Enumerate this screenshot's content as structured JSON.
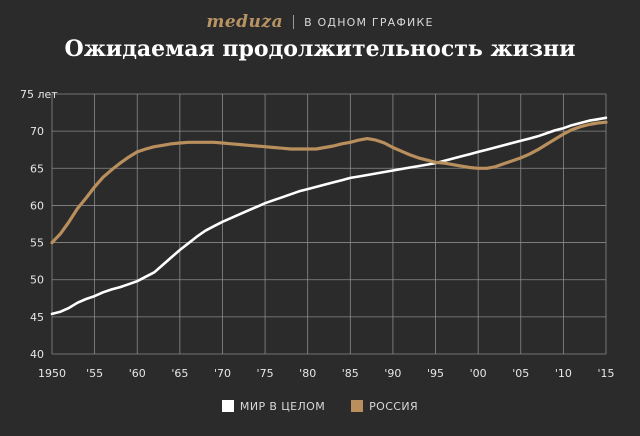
{
  "header": {
    "brand": "meduza",
    "tagline": "В ОДНОМ ГРАФИКЕ"
  },
  "colors": {
    "background": "#2b2b2b",
    "world": "#ffffff",
    "russia": "#b88f5d",
    "brand": "#b89463",
    "grid": "#8a8a8a"
  },
  "chart_data": {
    "type": "line",
    "title": "Ожидаемая продолжительность жизни",
    "xlabel": "",
    "ylabel": "",
    "xlim": [
      1950,
      2015
    ],
    "ylim": [
      40,
      75
    ],
    "x_ticks": [
      1950,
      1955,
      1960,
      1965,
      1970,
      1975,
      1980,
      1985,
      1990,
      1995,
      2000,
      2005,
      2010,
      2015
    ],
    "x_tick_labels": [
      "1950",
      "'55",
      "'60",
      "'65",
      "'70",
      "'75",
      "'80",
      "'85",
      "'90",
      "'95",
      "'00",
      "'05",
      "'10",
      "'15"
    ],
    "y_ticks": [
      40,
      45,
      50,
      55,
      60,
      65,
      70,
      75
    ],
    "y_tick_labels": [
      "40",
      "45",
      "50",
      "55",
      "60",
      "65",
      "70",
      "75 лет"
    ],
    "grid": true,
    "legend": "bottom",
    "series": [
      {
        "name": "МИР В ЦЕЛОМ",
        "color": "#ffffff",
        "x": [
          1950,
          1951,
          1952,
          1953,
          1954,
          1955,
          1956,
          1957,
          1958,
          1959,
          1960,
          1961,
          1962,
          1963,
          1964,
          1965,
          1966,
          1967,
          1968,
          1969,
          1970,
          1971,
          1972,
          1973,
          1974,
          1975,
          1976,
          1977,
          1978,
          1979,
          1980,
          1981,
          1982,
          1983,
          1984,
          1985,
          1986,
          1987,
          1988,
          1989,
          1990,
          1991,
          1992,
          1993,
          1994,
          1995,
          1996,
          1997,
          1998,
          1999,
          2000,
          2001,
          2002,
          2003,
          2004,
          2005,
          2006,
          2007,
          2008,
          2009,
          2010,
          2011,
          2012,
          2013,
          2014,
          2015
        ],
        "values": [
          45.4,
          45.7,
          46.2,
          46.9,
          47.4,
          47.8,
          48.3,
          48.7,
          49.0,
          49.4,
          49.8,
          50.4,
          51.0,
          52.0,
          53.0,
          54.0,
          54.9,
          55.8,
          56.6,
          57.2,
          57.8,
          58.3,
          58.8,
          59.3,
          59.8,
          60.3,
          60.7,
          61.1,
          61.5,
          61.9,
          62.2,
          62.5,
          62.8,
          63.1,
          63.4,
          63.7,
          63.9,
          64.1,
          64.3,
          64.5,
          64.7,
          64.9,
          65.1,
          65.3,
          65.5,
          65.7,
          66.0,
          66.3,
          66.6,
          66.9,
          67.2,
          67.5,
          67.8,
          68.1,
          68.4,
          68.7,
          69.0,
          69.3,
          69.7,
          70.1,
          70.4,
          70.8,
          71.1,
          71.4,
          71.6,
          71.8
        ]
      },
      {
        "name": "РОССИЯ",
        "color": "#b88f5d",
        "x": [
          1950,
          1951,
          1952,
          1953,
          1954,
          1955,
          1956,
          1957,
          1958,
          1959,
          1960,
          1961,
          1962,
          1963,
          1964,
          1965,
          1966,
          1967,
          1968,
          1969,
          1970,
          1971,
          1972,
          1973,
          1974,
          1975,
          1976,
          1977,
          1978,
          1979,
          1980,
          1981,
          1982,
          1983,
          1984,
          1985,
          1986,
          1987,
          1988,
          1989,
          1990,
          1991,
          1992,
          1993,
          1994,
          1995,
          1996,
          1997,
          1998,
          1999,
          2000,
          2001,
          2002,
          2003,
          2004,
          2005,
          2006,
          2007,
          2008,
          2009,
          2010,
          2011,
          2012,
          2013,
          2014,
          2015
        ],
        "values": [
          55.0,
          56.2,
          57.8,
          59.6,
          61.0,
          62.5,
          63.8,
          64.8,
          65.7,
          66.5,
          67.2,
          67.6,
          67.9,
          68.1,
          68.3,
          68.4,
          68.5,
          68.5,
          68.5,
          68.5,
          68.4,
          68.3,
          68.2,
          68.1,
          68.0,
          67.9,
          67.8,
          67.7,
          67.6,
          67.6,
          67.6,
          67.6,
          67.8,
          68.0,
          68.3,
          68.5,
          68.8,
          69.0,
          68.8,
          68.4,
          67.8,
          67.3,
          66.8,
          66.4,
          66.1,
          65.8,
          65.7,
          65.5,
          65.3,
          65.1,
          65.0,
          65.0,
          65.2,
          65.6,
          66.0,
          66.4,
          66.9,
          67.5,
          68.2,
          68.9,
          69.6,
          70.2,
          70.6,
          70.9,
          71.1,
          71.2
        ]
      }
    ]
  }
}
